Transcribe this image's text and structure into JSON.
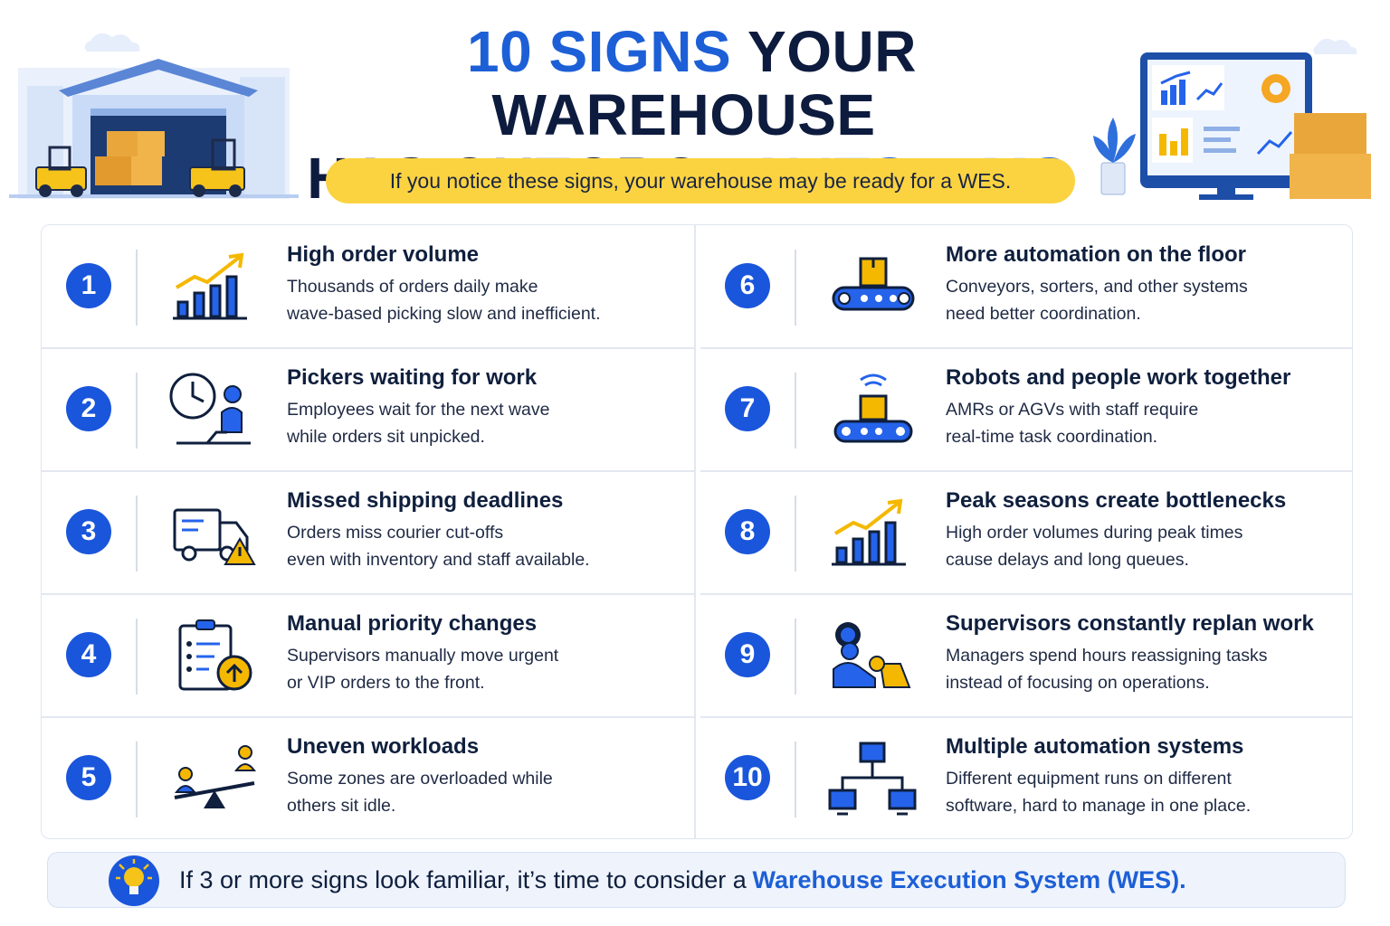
{
  "header": {
    "title": {
      "lines": [
        [
          {
            "text": "10 SIGNS",
            "accent": true
          },
          {
            "text": "YOUR WAREHOUSE",
            "accent": false
          }
        ],
        [
          {
            "text": "HAS OUTGROWN",
            "accent": false
          },
          {
            "text": "ITS WMS",
            "accent": true
          }
        ]
      ]
    },
    "subtitle": "If you notice these signs, your warehouse may be ready for a WES."
  },
  "signs": [
    {
      "number": 1,
      "title": "High order volume",
      "description": [
        "Thousands of orders daily make",
        "wave-based picking slow and inefficient."
      ]
    },
    {
      "number": 2,
      "title": "Pickers waiting for work",
      "description": [
        "Employees wait for the next wave",
        "while orders sit unpicked."
      ]
    },
    {
      "number": 3,
      "title": "Missed shipping deadlines",
      "description": [
        "Orders miss courier cut-offs",
        "even with inventory and staff available."
      ]
    },
    {
      "number": 4,
      "title": "Manual priority changes",
      "description": [
        "Supervisors manually move urgent",
        "or VIP orders to the front."
      ]
    },
    {
      "number": 5,
      "title": "Uneven workloads",
      "description": [
        "Some zones are overloaded while",
        "others sit idle."
      ]
    },
    {
      "number": 6,
      "title": "More automation on the floor",
      "description": [
        "Conveyors, sorters, and other systems",
        "need better coordination."
      ]
    },
    {
      "number": 7,
      "title": "Robots and people work together",
      "description": [
        "AMRs or AGVs with staff require",
        "real-time task coordination."
      ]
    },
    {
      "number": 8,
      "title": "Peak seasons create bottlenecks",
      "description": [
        "High order volumes during peak times",
        "cause delays and long queues."
      ]
    },
    {
      "number": 9,
      "title": "Supervisors constantly replan work",
      "description": [
        "Managers spend hours reassigning tasks",
        "instead of focusing on operations."
      ]
    },
    {
      "number": 10,
      "title": "Multiple automation systems",
      "description": [
        "Different equipment runs on different",
        "software, hard to manage in one place."
      ]
    }
  ],
  "footer": {
    "segments": [
      {
        "text": "If 3 or more signs look familiar, it’s time to consider a",
        "accent": false
      },
      {
        "text": "Warehouse Execution System (WES).",
        "accent": true
      }
    ]
  }
}
